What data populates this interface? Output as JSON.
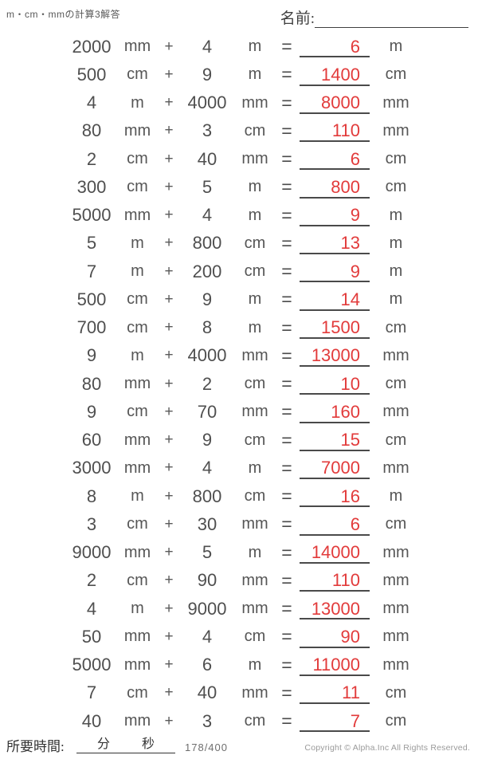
{
  "header": {
    "title": "m・cm・mmの計算3解答",
    "name_label": "名前:"
  },
  "ops": {
    "plus": "+",
    "equals": "="
  },
  "problems": [
    {
      "a": "2000",
      "ua": "mm",
      "b": "4",
      "ub": "m",
      "ans": "6",
      "uans": "m"
    },
    {
      "a": "500",
      "ua": "cm",
      "b": "9",
      "ub": "m",
      "ans": "1400",
      "uans": "cm"
    },
    {
      "a": "4",
      "ua": "m",
      "b": "4000",
      "ub": "mm",
      "ans": "8000",
      "uans": "mm"
    },
    {
      "a": "80",
      "ua": "mm",
      "b": "3",
      "ub": "cm",
      "ans": "110",
      "uans": "mm"
    },
    {
      "a": "2",
      "ua": "cm",
      "b": "40",
      "ub": "mm",
      "ans": "6",
      "uans": "cm"
    },
    {
      "a": "300",
      "ua": "cm",
      "b": "5",
      "ub": "m",
      "ans": "800",
      "uans": "cm"
    },
    {
      "a": "5000",
      "ua": "mm",
      "b": "4",
      "ub": "m",
      "ans": "9",
      "uans": "m"
    },
    {
      "a": "5",
      "ua": "m",
      "b": "800",
      "ub": "cm",
      "ans": "13",
      "uans": "m"
    },
    {
      "a": "7",
      "ua": "m",
      "b": "200",
      "ub": "cm",
      "ans": "9",
      "uans": "m"
    },
    {
      "a": "500",
      "ua": "cm",
      "b": "9",
      "ub": "m",
      "ans": "14",
      "uans": "m"
    },
    {
      "a": "700",
      "ua": "cm",
      "b": "8",
      "ub": "m",
      "ans": "1500",
      "uans": "cm"
    },
    {
      "a": "9",
      "ua": "m",
      "b": "4000",
      "ub": "mm",
      "ans": "13000",
      "uans": "mm"
    },
    {
      "a": "80",
      "ua": "mm",
      "b": "2",
      "ub": "cm",
      "ans": "10",
      "uans": "cm"
    },
    {
      "a": "9",
      "ua": "cm",
      "b": "70",
      "ub": "mm",
      "ans": "160",
      "uans": "mm"
    },
    {
      "a": "60",
      "ua": "mm",
      "b": "9",
      "ub": "cm",
      "ans": "15",
      "uans": "cm"
    },
    {
      "a": "3000",
      "ua": "mm",
      "b": "4",
      "ub": "m",
      "ans": "7000",
      "uans": "mm"
    },
    {
      "a": "8",
      "ua": "m",
      "b": "800",
      "ub": "cm",
      "ans": "16",
      "uans": "m"
    },
    {
      "a": "3",
      "ua": "cm",
      "b": "30",
      "ub": "mm",
      "ans": "6",
      "uans": "cm"
    },
    {
      "a": "9000",
      "ua": "mm",
      "b": "5",
      "ub": "m",
      "ans": "14000",
      "uans": "mm"
    },
    {
      "a": "2",
      "ua": "cm",
      "b": "90",
      "ub": "mm",
      "ans": "110",
      "uans": "mm"
    },
    {
      "a": "4",
      "ua": "m",
      "b": "9000",
      "ub": "mm",
      "ans": "13000",
      "uans": "mm"
    },
    {
      "a": "50",
      "ua": "mm",
      "b": "4",
      "ub": "cm",
      "ans": "90",
      "uans": "mm"
    },
    {
      "a": "5000",
      "ua": "mm",
      "b": "6",
      "ub": "m",
      "ans": "11000",
      "uans": "mm"
    },
    {
      "a": "7",
      "ua": "cm",
      "b": "40",
      "ub": "mm",
      "ans": "11",
      "uans": "cm"
    },
    {
      "a": "40",
      "ua": "mm",
      "b": "3",
      "ub": "cm",
      "ans": "7",
      "uans": "cm"
    }
  ],
  "footer": {
    "time_label": "所要時間:",
    "minutes_label": "分",
    "seconds_label": "秒",
    "page": "178/400",
    "copyright": "Copyright © Alpha.Inc All Rights Reserved."
  },
  "colors": {
    "answer_red": "#e23b3b",
    "body_text": "#4f4f4f",
    "answer_line": "#4a4a4a"
  }
}
